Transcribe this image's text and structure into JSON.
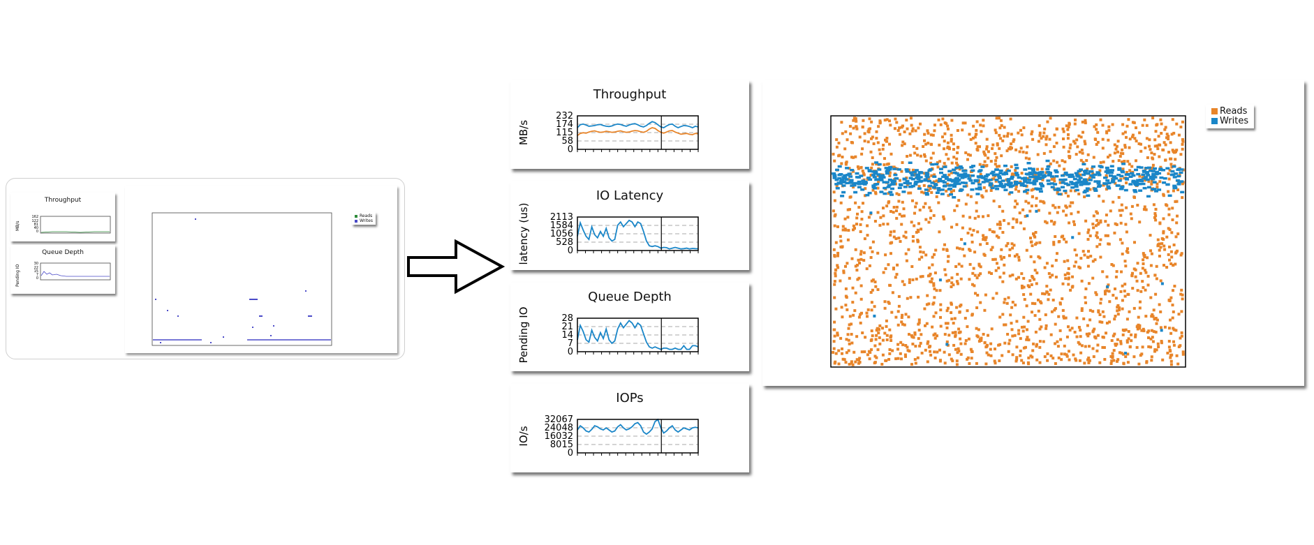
{
  "thumbnail": {
    "throughput": {
      "title": "Throughput",
      "ylabel": "MB/s",
      "ticks": [
        "162",
        "122",
        "81",
        "40",
        "0"
      ]
    },
    "queue_depth": {
      "title": "Queue Depth",
      "ylabel": "Pending IO",
      "ticks": [
        "30",
        "22",
        "15",
        "7",
        "0"
      ]
    },
    "legend": {
      "reads": "Reads",
      "writes": "Writes"
    }
  },
  "arrow": {
    "name": "right-arrow-icon"
  },
  "colors": {
    "reads": "#e8852a",
    "writes": "#1a86c8",
    "reads_thumb": "#2e8b3a",
    "writes_thumb": "#4a4ac8"
  },
  "chart_data": [
    {
      "type": "line",
      "title": "Throughput",
      "ylabel": "MB/s",
      "yticks": [
        "232",
        "174",
        "115",
        "58",
        "0"
      ],
      "ylim": [
        0,
        232
      ],
      "series": [
        {
          "name": "Writes",
          "color": "#1a86c8",
          "values": [
            150,
            170,
            175,
            168,
            160,
            162,
            165,
            170,
            172,
            165,
            160,
            158,
            162,
            170,
            175,
            172,
            165,
            160,
            168,
            175,
            178,
            170,
            160,
            155,
            165,
            180,
            192,
            185,
            170,
            155,
            150,
            162,
            172,
            175,
            160,
            150,
            158,
            165,
            163,
            158,
            150,
            160,
            155
          ]
        },
        {
          "name": "Reads",
          "color": "#e8852a",
          "values": [
            95,
            110,
            115,
            112,
            120,
            125,
            128,
            122,
            118,
            120,
            125,
            122,
            118,
            120,
            125,
            128,
            122,
            118,
            120,
            126,
            130,
            128,
            122,
            118,
            125,
            140,
            150,
            145,
            130,
            118,
            112,
            120,
            128,
            130,
            120,
            112,
            105,
            108,
            110,
            104,
            102,
            110,
            108
          ]
        }
      ]
    },
    {
      "type": "line",
      "title": "IO Latency",
      "ylabel": "latency (us)",
      "yticks": [
        "2113",
        "1584",
        "1056",
        "528",
        "0"
      ],
      "ylim": [
        0,
        2113
      ],
      "series": [
        {
          "name": "",
          "color": "#1a86c8",
          "values": [
            900,
            1750,
            1300,
            900,
            700,
            1500,
            1000,
            800,
            1200,
            900,
            1400,
            800,
            600,
            700,
            1600,
            1800,
            1500,
            1700,
            1900,
            1800,
            1500,
            1800,
            1700,
            1200,
            600,
            300,
            250,
            300,
            250,
            150,
            200,
            180,
            100,
            150,
            200,
            150,
            100,
            120,
            150,
            100,
            130,
            120,
            110
          ]
        }
      ]
    },
    {
      "type": "line",
      "title": "Queue Depth",
      "ylabel": "Pending IO",
      "yticks": [
        "28",
        "21",
        "14",
        "7",
        "0"
      ],
      "ylim": [
        0,
        28
      ],
      "series": [
        {
          "name": "",
          "color": "#1a86c8",
          "values": [
            10,
            22,
            17,
            10,
            8,
            18,
            12,
            9,
            16,
            11,
            19,
            10,
            7,
            9,
            19,
            24,
            20,
            23,
            26,
            24,
            20,
            24,
            22,
            15,
            8,
            4,
            3,
            4,
            3,
            2,
            3,
            3,
            2,
            2,
            3,
            2,
            2,
            5,
            2,
            2,
            5,
            5,
            4
          ]
        }
      ]
    },
    {
      "type": "line",
      "title": "IOPs",
      "ylabel": "IO/s",
      "yticks": [
        "32067",
        "24048",
        "16032",
        "8015",
        "0"
      ],
      "ylim": [
        0,
        32067
      ],
      "series": [
        {
          "name": "",
          "color": "#1a86c8",
          "values": [
            22000,
            26000,
            24000,
            21000,
            20000,
            22500,
            26000,
            25000,
            23000,
            22000,
            24000,
            22000,
            20000,
            21000,
            25000,
            27000,
            24000,
            22000,
            23000,
            25000,
            28000,
            29000,
            26000,
            20000,
            18000,
            20000,
            23000,
            30000,
            32000,
            24000,
            19000,
            21000,
            24000,
            26000,
            22000,
            20000,
            22000,
            24000,
            23000,
            22000,
            24000,
            24500,
            24000
          ]
        }
      ]
    },
    {
      "type": "scatter",
      "title": "",
      "legend": [
        "Reads",
        "Writes"
      ],
      "legend_position": "top-right",
      "series": [
        {
          "name": "Reads",
          "color": "#e8852a",
          "description_band": "dense near top and bottom, sparse mid"
        },
        {
          "name": "Writes",
          "color": "#1a86c8",
          "description_band": "dense horizontal band near upper quarter"
        }
      ]
    }
  ]
}
